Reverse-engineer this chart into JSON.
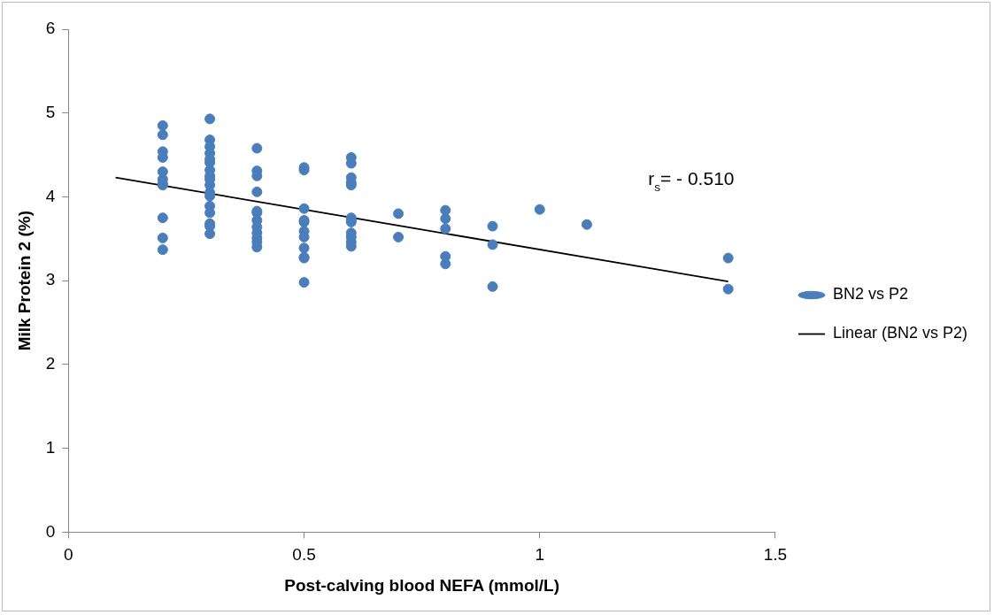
{
  "chart_data": {
    "type": "scatter",
    "xlabel": "Post-calving blood NEFA (mmol/L)",
    "ylabel": "Milk Protein 2 (%)",
    "xlim": [
      0,
      1.5
    ],
    "xticks": [
      0,
      0.5,
      1,
      1.5
    ],
    "ylim": [
      0,
      6
    ],
    "yticks": [
      0,
      1,
      2,
      3,
      4,
      5,
      6
    ],
    "grid": false,
    "legend": "right",
    "marker": "circle",
    "annotations": [
      "r$_{s}$= - 0.510"
    ],
    "series": [
      {
        "name": "BN2 vs P2",
        "type": "scatter",
        "color": "#4a7ebb",
        "x": [
          0.2,
          0.2,
          0.2,
          0.2,
          0.2,
          0.2,
          0.2,
          0.2,
          0.2,
          0.2,
          0.2,
          0.3,
          0.3,
          0.3,
          0.3,
          0.3,
          0.3,
          0.3,
          0.3,
          0.3,
          0.3,
          0.3,
          0.3,
          0.3,
          0.3,
          0.3,
          0.3,
          0.3,
          0.4,
          0.4,
          0.4,
          0.4,
          0.4,
          0.4,
          0.4,
          0.4,
          0.4,
          0.4,
          0.4,
          0.4,
          0.5,
          0.5,
          0.5,
          0.5,
          0.5,
          0.5,
          0.5,
          0.5,
          0.5,
          0.5,
          0.5,
          0.6,
          0.6,
          0.6,
          0.6,
          0.6,
          0.6,
          0.6,
          0.6,
          0.6,
          0.6,
          0.6,
          0.6,
          0.7,
          0.7,
          0.8,
          0.8,
          0.8,
          0.8,
          0.8,
          0.9,
          0.9,
          0.9,
          1.0,
          1.1,
          1.4,
          1.4
        ],
        "values": [
          4.85,
          4.74,
          4.54,
          4.47,
          4.3,
          4.21,
          4.16,
          4.14,
          3.75,
          3.51,
          3.37,
          4.93,
          4.68,
          4.6,
          4.52,
          4.45,
          4.41,
          4.32,
          4.25,
          4.21,
          4.14,
          4.05,
          4.01,
          3.89,
          3.81,
          3.68,
          3.65,
          3.56,
          4.58,
          4.31,
          4.25,
          4.06,
          3.83,
          3.81,
          3.72,
          3.64,
          3.57,
          3.51,
          3.46,
          3.4,
          4.35,
          4.32,
          3.86,
          3.72,
          3.7,
          3.59,
          3.52,
          3.39,
          3.28,
          3.27,
          2.98,
          4.47,
          4.4,
          4.23,
          4.17,
          4.14,
          3.75,
          3.72,
          3.7,
          3.57,
          3.52,
          3.46,
          3.41,
          3.8,
          3.52,
          3.84,
          3.74,
          3.62,
          3.29,
          3.2,
          3.65,
          3.43,
          2.93,
          3.85,
          3.67,
          3.27,
          2.9
        ]
      },
      {
        "name": "Linear (BN2 vs P2)",
        "type": "line",
        "color": "#000000",
        "line_style": "solid",
        "marker": "none",
        "x": [
          0.1,
          1.4
        ],
        "values": [
          4.23,
          2.99
        ]
      }
    ]
  }
}
